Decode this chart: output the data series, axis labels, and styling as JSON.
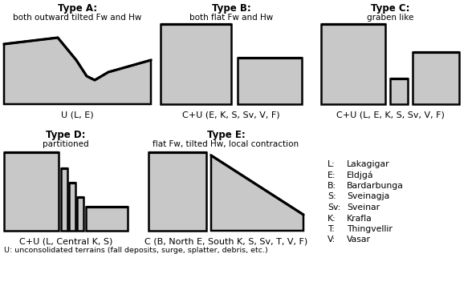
{
  "background_color": "#ffffff",
  "gray_fill": "#c8c8c8",
  "black_line": "#000000",
  "lw": 1.8,
  "lw_surface": 2.3,
  "title_fontsize": 8.5,
  "subtitle_fontsize": 7.5,
  "label_fontsize": 8,
  "legend_fontsize": 7.8,
  "note_fontsize": 6.8,
  "type_titles": [
    "Type A:",
    "Type B:",
    "Type C:",
    "Type D:",
    "Type E:"
  ],
  "type_subtitles": [
    "both outward tilted Fw and Hw",
    "both flat Fw and Hw",
    "graben like",
    "partitioned",
    "flat Fw, tilted Hw, local contraction"
  ],
  "type_labels": [
    "U (L, E)",
    "C+U (E, K, S, Sv, V, F)",
    "C+U (L, E, K, S, Sv, V, F)",
    "C+U (L, Central K, S)",
    "C (B, North E, South K, S, Sv, T, V, F)"
  ],
  "legend_lines": [
    [
      "L:",
      "Lakagigar"
    ],
    [
      "E:",
      "Eldjgá"
    ],
    [
      "B:",
      "Bardarbunga"
    ],
    [
      "S:",
      "Sveinagja"
    ],
    [
      "Sv:",
      "Sveinar"
    ],
    [
      "K:",
      "Krafla"
    ],
    [
      "T:",
      "Thingvellir"
    ],
    [
      "V:",
      "Vasar"
    ]
  ],
  "bottom_note": "U: unconsolidated terrains (fall deposits, surge, splatter, debris, etc.)"
}
